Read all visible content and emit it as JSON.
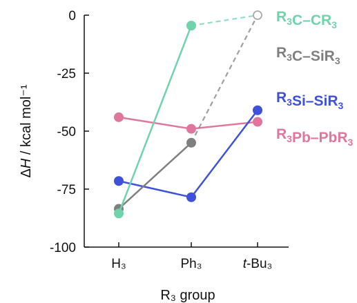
{
  "chart_data": {
    "type": "line",
    "title": "",
    "xlabel": "R₃ group",
    "ylabel": "ΔH / kcal mol⁻¹",
    "categories": [
      "H₃",
      "Ph₃",
      "t-Bu₃"
    ],
    "ylim": [
      -100,
      0
    ],
    "yticks": [
      "0",
      "-25",
      "-50",
      "-75",
      "-100"
    ],
    "ytick_values": [
      0,
      -25,
      -50,
      -75,
      -100
    ],
    "grid": false,
    "legend": "right, inline labels",
    "series": [
      {
        "name": "R₃C–CR₃",
        "color": "#6fd3ab",
        "values": [
          -85.5,
          -4.5,
          0
        ],
        "open_last": true,
        "dashed_last": true
      },
      {
        "name": "R₃C–SiR₃",
        "color": "#7f7f7f",
        "values": [
          -83.5,
          -55,
          0
        ],
        "open_last": true,
        "dashed_last": true,
        "hide_last_marker": true
      },
      {
        "name": "R₃Si–SiR₃",
        "color": "#3f51d9",
        "values": [
          -71.5,
          -78.5,
          -41
        ]
      },
      {
        "name": "R₃Pb–PbR₃",
        "color": "#e0769b",
        "values": [
          -44,
          -49,
          -46
        ]
      }
    ]
  }
}
